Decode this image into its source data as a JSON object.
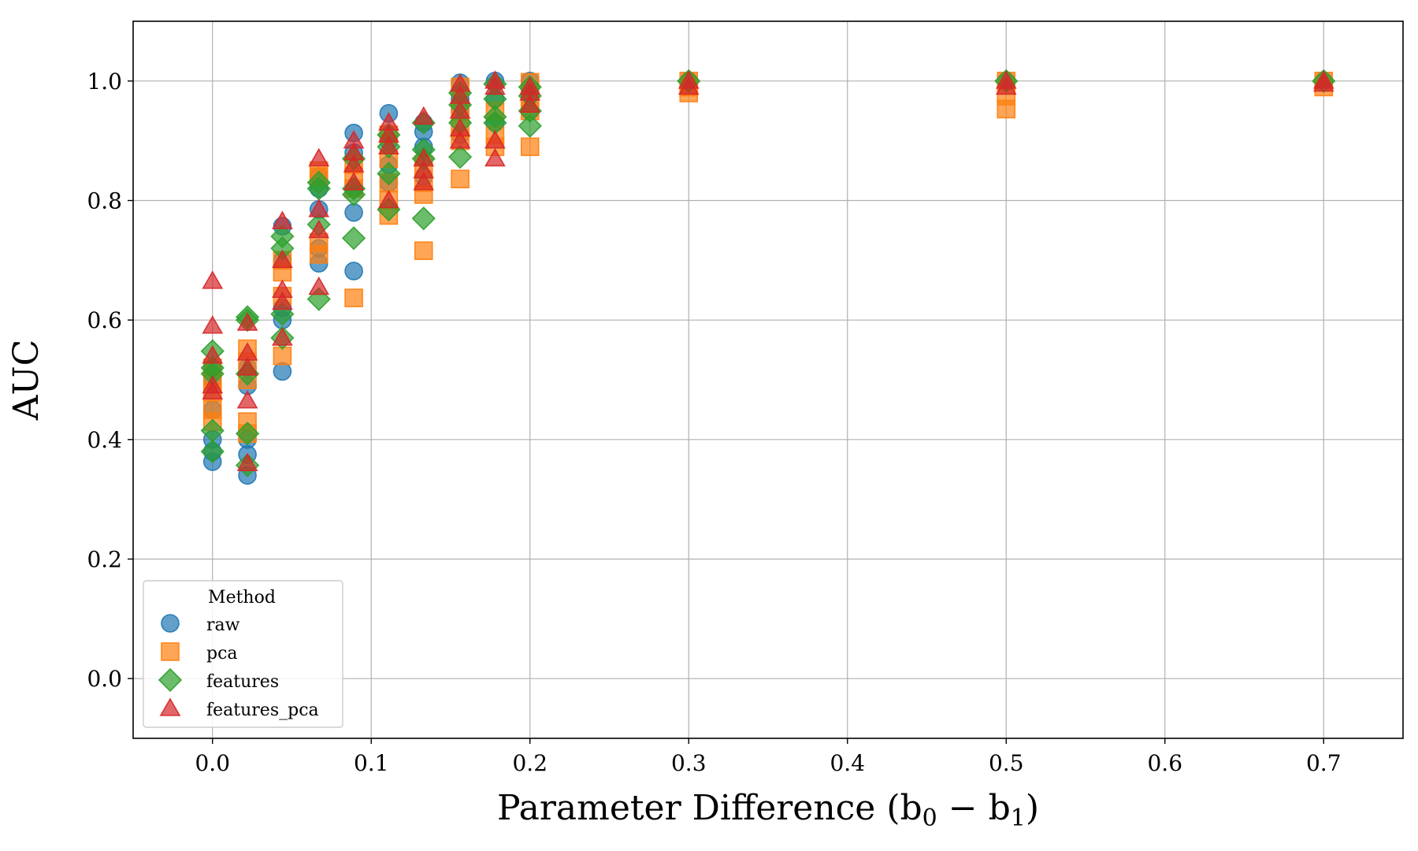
{
  "chart_data": {
    "type": "scatter",
    "title": "",
    "xlabel_main": "Parameter Difference (b",
    "xlabel_sub0": "0",
    "xlabel_minus": " − b",
    "xlabel_sub1": "1",
    "xlabel_close": ")",
    "ylabel": "AUC",
    "xlim": [
      -0.05,
      0.75
    ],
    "ylim": [
      -0.1,
      1.1
    ],
    "xticks": [
      0.0,
      0.1,
      0.2,
      0.3,
      0.4,
      0.5,
      0.6,
      0.7
    ],
    "xtick_labels": [
      "0.0",
      "0.1",
      "0.2",
      "0.3",
      "0.4",
      "0.5",
      "0.6",
      "0.7"
    ],
    "yticks": [
      0.0,
      0.2,
      0.4,
      0.6,
      0.8,
      1.0
    ],
    "ytick_labels": [
      "0.0",
      "0.2",
      "0.4",
      "0.6",
      "0.8",
      "1.0"
    ],
    "grid": true,
    "legend": {
      "title": "Method",
      "placement": "lower-left",
      "entries": [
        "raw",
        "pca",
        "features",
        "features_pca"
      ]
    },
    "series": [
      {
        "name": "raw",
        "marker": "circle",
        "color": "#1f77b4",
        "points": [
          [
            0.0,
            0.363
          ],
          [
            0.0,
            0.38
          ],
          [
            0.0,
            0.4
          ],
          [
            0.0,
            0.45
          ],
          [
            0.0,
            0.5
          ],
          [
            0.0,
            0.52
          ],
          [
            0.022,
            0.34
          ],
          [
            0.022,
            0.375
          ],
          [
            0.022,
            0.4
          ],
          [
            0.022,
            0.49
          ],
          [
            0.022,
            0.52
          ],
          [
            0.044,
            0.514
          ],
          [
            0.044,
            0.6
          ],
          [
            0.044,
            0.62
          ],
          [
            0.044,
            0.7
          ],
          [
            0.044,
            0.757
          ],
          [
            0.067,
            0.695
          ],
          [
            0.067,
            0.72
          ],
          [
            0.067,
            0.785
          ],
          [
            0.067,
            0.82
          ],
          [
            0.067,
            0.84
          ],
          [
            0.089,
            0.682
          ],
          [
            0.089,
            0.78
          ],
          [
            0.089,
            0.82
          ],
          [
            0.089,
            0.88
          ],
          [
            0.089,
            0.913
          ],
          [
            0.111,
            0.83
          ],
          [
            0.111,
            0.86
          ],
          [
            0.111,
            0.9
          ],
          [
            0.111,
            0.946
          ],
          [
            0.133,
            0.84
          ],
          [
            0.133,
            0.89
          ],
          [
            0.133,
            0.915
          ],
          [
            0.133,
            0.93
          ],
          [
            0.156,
            0.91
          ],
          [
            0.156,
            0.95
          ],
          [
            0.156,
            0.97
          ],
          [
            0.156,
            0.997
          ],
          [
            0.178,
            0.93
          ],
          [
            0.178,
            0.97
          ],
          [
            0.178,
            1.0
          ],
          [
            0.2,
            0.95
          ],
          [
            0.2,
            0.98
          ],
          [
            0.2,
            1.0
          ],
          [
            0.3,
            1.0
          ],
          [
            0.5,
            1.0
          ],
          [
            0.7,
            1.0
          ]
        ]
      },
      {
        "name": "pca",
        "marker": "square",
        "color": "#ff7f0e",
        "points": [
          [
            0.0,
            0.43
          ],
          [
            0.0,
            0.45
          ],
          [
            0.0,
            0.48
          ],
          [
            0.0,
            0.5
          ],
          [
            0.0,
            0.52
          ],
          [
            0.022,
            0.41
          ],
          [
            0.022,
            0.43
          ],
          [
            0.022,
            0.5
          ],
          [
            0.022,
            0.53
          ],
          [
            0.022,
            0.552
          ],
          [
            0.044,
            0.54
          ],
          [
            0.044,
            0.64
          ],
          [
            0.044,
            0.68
          ],
          [
            0.044,
            0.7
          ],
          [
            0.067,
            0.71
          ],
          [
            0.067,
            0.73
          ],
          [
            0.067,
            0.84
          ],
          [
            0.067,
            0.85
          ],
          [
            0.089,
            0.637
          ],
          [
            0.089,
            0.82
          ],
          [
            0.089,
            0.84
          ],
          [
            0.089,
            0.86
          ],
          [
            0.111,
            0.775
          ],
          [
            0.111,
            0.8
          ],
          [
            0.111,
            0.83
          ],
          [
            0.111,
            0.87
          ],
          [
            0.111,
            0.91
          ],
          [
            0.133,
            0.716
          ],
          [
            0.133,
            0.81
          ],
          [
            0.133,
            0.83
          ],
          [
            0.133,
            0.86
          ],
          [
            0.156,
            0.836
          ],
          [
            0.156,
            0.9
          ],
          [
            0.156,
            0.92
          ],
          [
            0.156,
            0.95
          ],
          [
            0.156,
            0.99
          ],
          [
            0.178,
            0.89
          ],
          [
            0.178,
            0.91
          ],
          [
            0.178,
            0.95
          ],
          [
            0.2,
            0.89
          ],
          [
            0.2,
            0.95
          ],
          [
            0.2,
            0.97
          ],
          [
            0.2,
            0.998
          ],
          [
            0.3,
            0.98
          ],
          [
            0.3,
            0.99
          ],
          [
            0.3,
            1.0
          ],
          [
            0.5,
            0.953
          ],
          [
            0.5,
            0.975
          ],
          [
            0.5,
            1.0
          ],
          [
            0.7,
            0.99
          ],
          [
            0.7,
            1.0
          ]
        ]
      },
      {
        "name": "features",
        "marker": "diamond",
        "color": "#2ca02c",
        "points": [
          [
            0.0,
            0.38
          ],
          [
            0.0,
            0.415
          ],
          [
            0.0,
            0.51
          ],
          [
            0.0,
            0.52
          ],
          [
            0.0,
            0.548
          ],
          [
            0.022,
            0.357
          ],
          [
            0.022,
            0.41
          ],
          [
            0.022,
            0.51
          ],
          [
            0.022,
            0.6
          ],
          [
            0.022,
            0.605
          ],
          [
            0.044,
            0.57
          ],
          [
            0.044,
            0.61
          ],
          [
            0.044,
            0.72
          ],
          [
            0.044,
            0.74
          ],
          [
            0.067,
            0.635
          ],
          [
            0.067,
            0.76
          ],
          [
            0.067,
            0.82
          ],
          [
            0.067,
            0.83
          ],
          [
            0.089,
            0.737
          ],
          [
            0.089,
            0.81
          ],
          [
            0.089,
            0.82
          ],
          [
            0.089,
            0.87
          ],
          [
            0.111,
            0.785
          ],
          [
            0.111,
            0.845
          ],
          [
            0.111,
            0.89
          ],
          [
            0.111,
            0.91
          ],
          [
            0.133,
            0.77
          ],
          [
            0.133,
            0.87
          ],
          [
            0.133,
            0.885
          ],
          [
            0.133,
            0.93
          ],
          [
            0.156,
            0.873
          ],
          [
            0.156,
            0.93
          ],
          [
            0.156,
            0.96
          ],
          [
            0.156,
            0.98
          ],
          [
            0.178,
            0.93
          ],
          [
            0.178,
            0.94
          ],
          [
            0.178,
            0.97
          ],
          [
            0.178,
            0.995
          ],
          [
            0.2,
            0.925
          ],
          [
            0.2,
            0.95
          ],
          [
            0.2,
            0.975
          ],
          [
            0.2,
            0.99
          ],
          [
            0.3,
            1.0
          ],
          [
            0.5,
            1.0
          ],
          [
            0.7,
            1.0
          ]
        ]
      },
      {
        "name": "features_pca",
        "marker": "triangle",
        "color": "#d62728",
        "points": [
          [
            0.0,
            0.48
          ],
          [
            0.0,
            0.49
          ],
          [
            0.0,
            0.54
          ],
          [
            0.0,
            0.59
          ],
          [
            0.0,
            0.665
          ],
          [
            0.022,
            0.36
          ],
          [
            0.022,
            0.465
          ],
          [
            0.022,
            0.52
          ],
          [
            0.022,
            0.545
          ],
          [
            0.022,
            0.595
          ],
          [
            0.044,
            0.57
          ],
          [
            0.044,
            0.63
          ],
          [
            0.044,
            0.65
          ],
          [
            0.044,
            0.7
          ],
          [
            0.044,
            0.765
          ],
          [
            0.067,
            0.655
          ],
          [
            0.067,
            0.75
          ],
          [
            0.067,
            0.785
          ],
          [
            0.067,
            0.87
          ],
          [
            0.089,
            0.83
          ],
          [
            0.089,
            0.86
          ],
          [
            0.089,
            0.88
          ],
          [
            0.089,
            0.9
          ],
          [
            0.111,
            0.8
          ],
          [
            0.111,
            0.89
          ],
          [
            0.111,
            0.91
          ],
          [
            0.111,
            0.93
          ],
          [
            0.133,
            0.83
          ],
          [
            0.133,
            0.85
          ],
          [
            0.133,
            0.87
          ],
          [
            0.133,
            0.94
          ],
          [
            0.156,
            0.9
          ],
          [
            0.156,
            0.92
          ],
          [
            0.156,
            0.95
          ],
          [
            0.156,
            0.975
          ],
          [
            0.156,
            0.995
          ],
          [
            0.178,
            0.87
          ],
          [
            0.178,
            0.9
          ],
          [
            0.178,
            0.99
          ],
          [
            0.178,
            1.0
          ],
          [
            0.2,
            0.96
          ],
          [
            0.2,
            0.98
          ],
          [
            0.2,
            0.99
          ],
          [
            0.3,
            0.99
          ],
          [
            0.3,
            1.0
          ],
          [
            0.5,
            0.99
          ],
          [
            0.5,
            1.0
          ],
          [
            0.7,
            0.995
          ],
          [
            0.7,
            1.0
          ]
        ]
      }
    ]
  }
}
